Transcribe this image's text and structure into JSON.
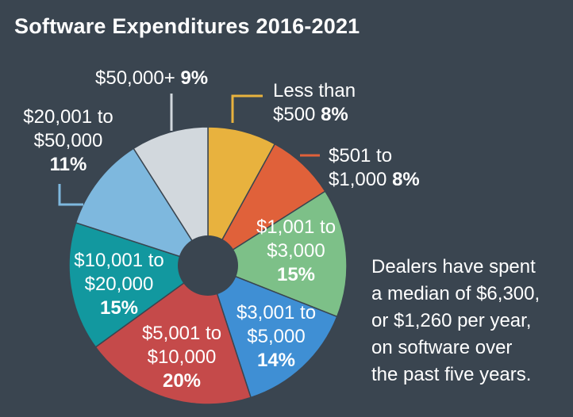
{
  "chart_data": {
    "type": "pie",
    "title": "Software Expenditures 2016-2021",
    "slices": [
      {
        "label_lines": [
          "Less than",
          "$500"
        ],
        "value": 8,
        "value_label": "8%",
        "color": "#e8b23e"
      },
      {
        "label_lines": [
          "$501 to",
          "$1,000"
        ],
        "value": 8,
        "value_label": "8%",
        "color": "#e0613a"
      },
      {
        "label_lines": [
          "$1,001 to",
          "$3,000"
        ],
        "value": 15,
        "value_label": "15%",
        "color": "#7dc088"
      },
      {
        "label_lines": [
          "$3,001 to",
          "$5,000"
        ],
        "value": 14,
        "value_label": "14%",
        "color": "#3f8fd4"
      },
      {
        "label_lines": [
          "$5,001 to",
          "$10,000"
        ],
        "value": 20,
        "value_label": "20%",
        "color": "#c54a4a"
      },
      {
        "label_lines": [
          "$10,001 to",
          "$20,000"
        ],
        "value": 15,
        "value_label": "15%",
        "color": "#12989f"
      },
      {
        "label_lines": [
          "$20,001 to",
          "$50,000"
        ],
        "value": 11,
        "value_label": "11%",
        "color": "#7eb8de"
      },
      {
        "label_lines": [
          "$50,000+"
        ],
        "value": 9,
        "value_label": "9%",
        "color": "#d2d8dd"
      }
    ],
    "note": "Dealers have spent\na median of $6,300,\nor $1,260 per year,\non software over\nthe past five years."
  }
}
